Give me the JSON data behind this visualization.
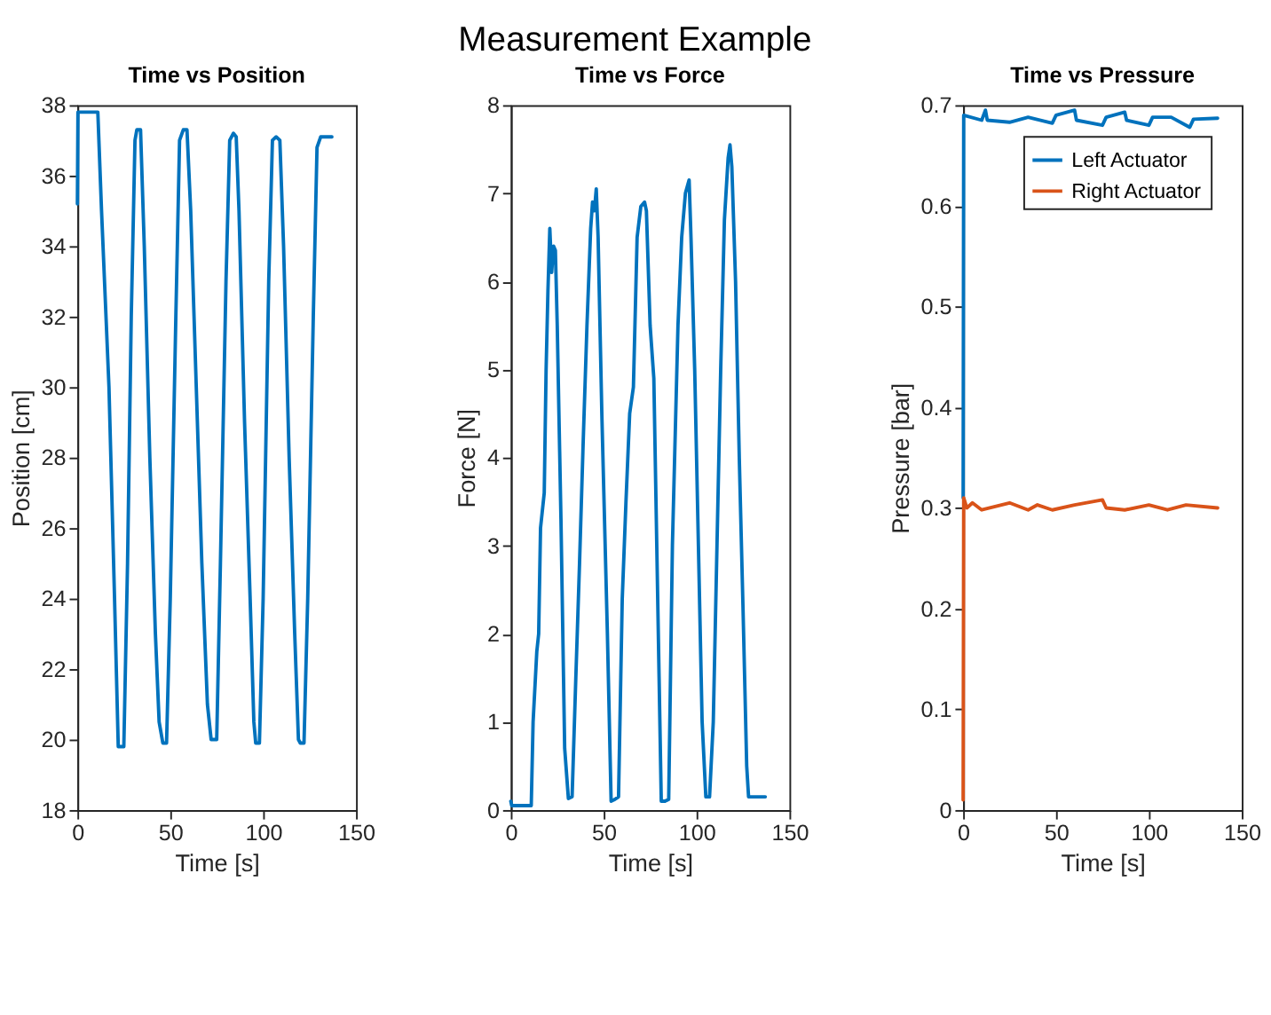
{
  "chart_data": [
    {
      "type": "line",
      "title": "Time vs Position",
      "annotations": [
        "Measurement Example"
      ],
      "xlabel": "Time [s]",
      "ylabel": "Position [cm]",
      "xlim": [
        0,
        150
      ],
      "xticks": [
        0,
        50,
        100,
        150
      ],
      "ylim": [
        18,
        38
      ],
      "yticks": [
        18,
        20,
        22,
        24,
        26,
        28,
        30,
        32,
        34,
        36,
        38
      ],
      "grid": false,
      "legend": false,
      "marker": "none",
      "line_style": "solid",
      "series": [
        {
          "color": "#0072bd",
          "x": [
            0,
            0.3,
            11,
            13,
            17,
            20,
            22,
            25,
            27,
            29,
            31,
            32,
            34,
            36,
            39,
            42,
            44,
            46,
            48,
            50,
            53,
            55,
            57,
            59,
            61,
            64,
            67,
            70,
            72,
            75,
            77,
            80,
            82,
            84,
            85.5,
            87,
            90,
            93,
            95,
            96,
            98,
            100,
            103,
            105,
            107,
            109,
            111,
            114,
            117,
            119,
            120,
            122,
            124,
            127,
            129,
            131,
            137
          ],
          "values": [
            35.2,
            37.8,
            37.8,
            35,
            30,
            24,
            19.8,
            19.8,
            25,
            32,
            37,
            37.3,
            37.3,
            34,
            28,
            23,
            20.5,
            19.9,
            19.9,
            24,
            32,
            37,
            37.3,
            37.3,
            35,
            30,
            25,
            21,
            20,
            20,
            25,
            33,
            37,
            37.2,
            37.1,
            35,
            29,
            24,
            20.5,
            19.9,
            19.9,
            24,
            33,
            37,
            37.1,
            37,
            34,
            28,
            23,
            20,
            19.9,
            19.9,
            24,
            32,
            36.8,
            37.1,
            37.1
          ]
        }
      ]
    },
    {
      "type": "line",
      "title": "Time vs Force",
      "xlabel": "Time [s]",
      "ylabel": "Force [N]",
      "xlim": [
        0,
        150
      ],
      "xticks": [
        0,
        50,
        100,
        150
      ],
      "ylim": [
        0,
        8
      ],
      "yticks": [
        0,
        1,
        2,
        3,
        4,
        5,
        6,
        7,
        8
      ],
      "grid": false,
      "legend": false,
      "marker": "none",
      "line_style": "solid",
      "series": [
        {
          "color": "#0072bd",
          "x": [
            0,
            0.5,
            11,
            12,
            14,
            15,
            16,
            18,
            19,
            20,
            21,
            22,
            23,
            24,
            25,
            27,
            29,
            31,
            33,
            35,
            37,
            39,
            41,
            43,
            44,
            45,
            46,
            47,
            49,
            52,
            54,
            56,
            58,
            60,
            62,
            64,
            66,
            68,
            70,
            72,
            73,
            75,
            77,
            79,
            81,
            83,
            85,
            87,
            90,
            92,
            94,
            96,
            97,
            99,
            101,
            103,
            105,
            107,
            109,
            111,
            113,
            115,
            117,
            118,
            119,
            121,
            123,
            125,
            127,
            128,
            137
          ],
          "values": [
            0.1,
            0.05,
            0.05,
            1,
            1.8,
            2,
            3.2,
            3.6,
            5,
            5.9,
            6.6,
            6.1,
            6.4,
            6.35,
            5.5,
            3.3,
            0.7,
            0.13,
            0.15,
            1.5,
            2.8,
            4.2,
            5.5,
            6.6,
            6.9,
            6.8,
            7.05,
            6.5,
            4.5,
            2,
            0.1,
            0.12,
            0.15,
            2.4,
            3.5,
            4.5,
            4.8,
            6.5,
            6.85,
            6.9,
            6.8,
            5.5,
            4.9,
            2.5,
            0.1,
            0.1,
            0.12,
            3,
            5.5,
            6.5,
            7,
            7.15,
            6.5,
            5,
            3,
            1,
            0.15,
            0.15,
            1,
            3,
            5,
            6.7,
            7.4,
            7.55,
            7.3,
            6,
            4,
            2.3,
            0.5,
            0.15,
            0.15
          ]
        }
      ]
    },
    {
      "type": "line",
      "title": "Time vs Pressure",
      "xlabel": "Time [s]",
      "ylabel": "Pressure [bar]",
      "xlim": [
        0,
        150
      ],
      "xticks": [
        0,
        50,
        100,
        150
      ],
      "ylim": [
        0,
        0.7
      ],
      "yticks": [
        0,
        0.1,
        0.2,
        0.3,
        0.4,
        0.5,
        0.6,
        0.7
      ],
      "grid": false,
      "legend": "top right",
      "marker": "none",
      "line_style": "solid",
      "series": [
        {
          "name": "Left Actuator",
          "color": "#0072bd",
          "x": [
            0,
            0.3,
            10,
            12,
            13,
            25,
            35,
            48,
            50,
            60,
            61,
            75,
            77,
            87,
            88,
            100,
            102,
            112,
            122,
            124,
            137
          ],
          "values": [
            0.31,
            0.69,
            0.685,
            0.695,
            0.685,
            0.683,
            0.688,
            0.682,
            0.69,
            0.695,
            0.685,
            0.68,
            0.688,
            0.693,
            0.685,
            0.68,
            0.688,
            0.688,
            0.678,
            0.686,
            0.687
          ]
        },
        {
          "name": "Right Actuator",
          "color": "#d95319",
          "x": [
            0,
            0.3,
            2,
            5,
            10,
            25,
            35,
            40,
            48,
            60,
            75,
            77,
            87,
            100,
            110,
            120,
            137
          ],
          "values": [
            0.01,
            0.31,
            0.3,
            0.305,
            0.298,
            0.305,
            0.298,
            0.303,
            0.298,
            0.303,
            0.308,
            0.3,
            0.298,
            0.303,
            0.298,
            0.303,
            0.3
          ]
        }
      ]
    }
  ]
}
